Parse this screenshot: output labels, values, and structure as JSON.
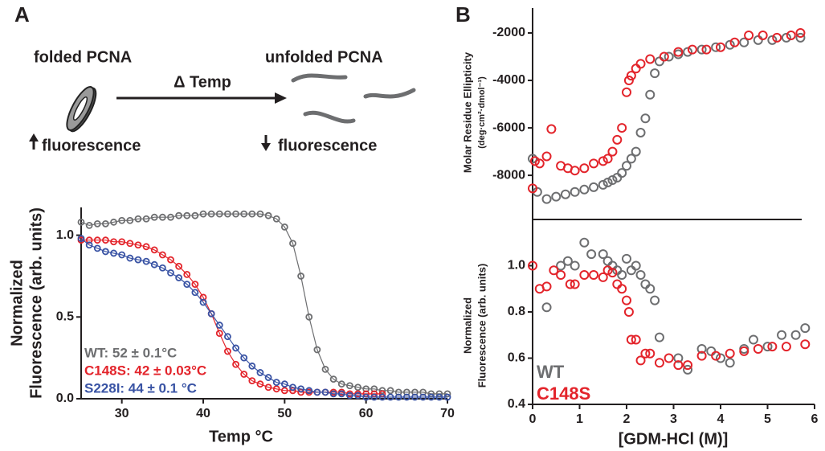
{
  "panel_labels": [
    "A",
    "B"
  ],
  "diagram": {
    "folded": "folded PCNA",
    "unfolded": "unfolded PCNA",
    "arrow_label": "Δ Temp",
    "left_readout": "fluorescence",
    "right_readout": "fluorescence"
  },
  "chart_data": [
    {
      "type": "line",
      "xlabel": "Temp °C",
      "ylabel": [
        "Normalized",
        "Fluorescence (arb. units)"
      ],
      "xlim": [
        25,
        70
      ],
      "ylim": [
        0,
        1.17
      ],
      "xticks": [
        30,
        40,
        50,
        60,
        70
      ],
      "yticks": [
        {
          "value": 0,
          "label": "0.0"
        },
        0.5,
        {
          "value": 1,
          "label": "1.0"
        }
      ],
      "x": [
        25,
        26,
        27,
        28,
        29,
        30,
        31,
        32,
        33,
        34,
        35,
        36,
        37,
        38,
        39,
        40,
        41,
        42,
        43,
        44,
        45,
        46,
        47,
        48,
        49,
        50,
        51,
        52,
        53,
        54,
        55,
        56,
        57,
        58,
        59,
        60,
        61,
        62,
        63,
        64,
        65,
        66,
        67,
        68,
        69,
        70
      ],
      "series": [
        {
          "name": "WT: 52 ± 0.1°C",
          "color": "#6d6e70",
          "values": [
            1.08,
            1.06,
            1.07,
            1.07,
            1.08,
            1.09,
            1.09,
            1.1,
            1.1,
            1.11,
            1.11,
            1.11,
            1.12,
            1.12,
            1.12,
            1.13,
            1.13,
            1.13,
            1.13,
            1.13,
            1.13,
            1.13,
            1.13,
            1.12,
            1.1,
            1.05,
            0.95,
            0.75,
            0.5,
            0.3,
            0.18,
            0.12,
            0.09,
            0.08,
            0.07,
            0.06,
            0.06,
            0.05,
            0.05,
            0.04,
            0.04,
            0.04,
            0.04,
            0.03,
            0.03,
            0.03
          ]
        },
        {
          "name": "C148S: 42 ± 0.03°C",
          "color": "#e3242b",
          "values": [
            0.97,
            0.97,
            0.97,
            0.97,
            0.96,
            0.96,
            0.95,
            0.94,
            0.93,
            0.91,
            0.88,
            0.85,
            0.81,
            0.76,
            0.7,
            0.62,
            0.52,
            0.4,
            0.29,
            0.21,
            0.15,
            0.11,
            0.09,
            0.07,
            0.06,
            0.05,
            0.05,
            0.04,
            0.04,
            0.04,
            0.04,
            0.04,
            0.04,
            0.03,
            0.03,
            0.03,
            0.03,
            0.03,
            null,
            null,
            null,
            null,
            null,
            null,
            null,
            null
          ]
        },
        {
          "name": "S228I: 44 ± 0.1 °C",
          "color": "#3953a4",
          "values": [
            0.98,
            0.94,
            0.92,
            0.9,
            0.89,
            0.88,
            0.86,
            0.85,
            0.84,
            0.82,
            0.8,
            0.77,
            0.74,
            0.7,
            0.65,
            0.59,
            0.52,
            0.45,
            0.38,
            0.31,
            0.25,
            0.2,
            0.16,
            0.13,
            0.1,
            0.09,
            0.07,
            0.06,
            0.05,
            0.04,
            0.04,
            0.03,
            0.03,
            0.02,
            0.02,
            0.01,
            0.01,
            0.01,
            0.01,
            0.01,
            0.01,
            0.01,
            0.01,
            0.01,
            0.01,
            0.01
          ]
        }
      ]
    },
    {
      "type": "scatter",
      "ylabel": [
        "Molar Residue Ellipticity",
        "(deg·cm²·dmol⁻¹)"
      ],
      "xlim": [
        0,
        6
      ],
      "ylim": [
        -9860,
        -950
      ],
      "yticks": [
        -2000,
        -4000,
        -6000,
        -8000
      ],
      "series": [
        {
          "color": "#6d6e70",
          "x": [
            0,
            0.1,
            0.3,
            0.5,
            0.7,
            0.9,
            1.1,
            1.3,
            1.5,
            1.6,
            1.7,
            1.8,
            1.9,
            2.0,
            2.1,
            2.2,
            2.3,
            2.4,
            2.5,
            2.6,
            2.7,
            2.9,
            3.1,
            3.3,
            3.6,
            3.9,
            4.2,
            4.5,
            4.8,
            5.1,
            5.4,
            5.7
          ],
          "values": [
            -7300,
            -8700,
            -9000,
            -8900,
            -8800,
            -8700,
            -8600,
            -8500,
            -8400,
            -8300,
            -8200,
            -8100,
            -7900,
            -7600,
            -7300,
            -7000,
            -6200,
            -5600,
            -4600,
            -3700,
            -3200,
            -3000,
            -2900,
            -2800,
            -2700,
            -2600,
            -2500,
            -2400,
            -2300,
            -2300,
            -2200,
            -2200
          ]
        },
        {
          "color": "#e3242b",
          "x": [
            0,
            0.05,
            0.15,
            0.3,
            0.4,
            0.6,
            0.75,
            0.9,
            1.1,
            1.3,
            1.5,
            1.6,
            1.7,
            1.8,
            1.9,
            2.0,
            2.05,
            2.1,
            2.2,
            2.3,
            2.5,
            2.8,
            3.1,
            3.4,
            3.7,
            4.0,
            4.3,
            4.6,
            4.9,
            5.2,
            5.5,
            5.7
          ],
          "values": [
            -8550,
            -7400,
            -7500,
            -7200,
            -6050,
            -7600,
            -7700,
            -7800,
            -7700,
            -7500,
            -7400,
            -7300,
            -7000,
            -6500,
            -6000,
            -4500,
            -4000,
            -3800,
            -3500,
            -3300,
            -3100,
            -3000,
            -2800,
            -2700,
            -2700,
            -2600,
            -2400,
            -2100,
            -2100,
            -2200,
            -2100,
            -2000
          ]
        }
      ]
    },
    {
      "type": "scatter",
      "xlabel": "[GDM-HCl (M)]",
      "ylabel": [
        "Normalized",
        "Fluorescence (arb. units)"
      ],
      "xlim": [
        0,
        6
      ],
      "ylim": [
        0.4,
        1.2
      ],
      "xticks": [
        0,
        1,
        2,
        3,
        4,
        5,
        6
      ],
      "yticks": [
        0.4,
        0.6,
        0.8,
        {
          "value": 1,
          "label": "1.0"
        }
      ],
      "series": [
        {
          "name": "WT",
          "color": "#6d6e70",
          "x": [
            0.3,
            0.6,
            0.75,
            0.9,
            1.1,
            1.25,
            1.5,
            1.6,
            1.7,
            1.8,
            1.9,
            2.0,
            2.1,
            2.2,
            2.3,
            2.4,
            2.5,
            2.6,
            2.7,
            3.1,
            3.3,
            3.6,
            3.8,
            4.0,
            4.2,
            4.5,
            4.7,
            5.0,
            5.3,
            5.6,
            5.8
          ],
          "values": [
            0.82,
            1.0,
            1.02,
            1.0,
            1.1,
            1.05,
            1.05,
            1.02,
            1.0,
            0.98,
            0.96,
            1.03,
            0.98,
            1.0,
            0.96,
            0.92,
            0.9,
            0.85,
            0.69,
            0.6,
            0.55,
            0.64,
            0.63,
            0.6,
            0.58,
            0.64,
            0.68,
            0.65,
            0.7,
            0.7,
            0.73
          ]
        },
        {
          "name": "C148S",
          "color": "#e3242b",
          "x": [
            0,
            0.15,
            0.3,
            0.45,
            0.6,
            0.8,
            0.9,
            1.1,
            1.3,
            1.5,
            1.6,
            1.7,
            1.8,
            1.9,
            2.0,
            2.05,
            2.1,
            2.2,
            2.3,
            2.4,
            2.5,
            2.7,
            2.9,
            3.1,
            3.3,
            3.6,
            3.9,
            4.2,
            4.5,
            4.8,
            5.1,
            5.4,
            5.8
          ],
          "values": [
            1.0,
            0.9,
            0.91,
            0.98,
            0.96,
            0.92,
            0.92,
            0.96,
            0.96,
            0.95,
            0.98,
            0.97,
            0.92,
            0.9,
            0.85,
            0.8,
            0.68,
            0.68,
            0.59,
            0.62,
            0.62,
            0.58,
            0.6,
            0.57,
            0.57,
            0.61,
            0.61,
            0.62,
            0.63,
            0.64,
            0.65,
            0.65,
            0.66
          ]
        }
      ]
    }
  ]
}
